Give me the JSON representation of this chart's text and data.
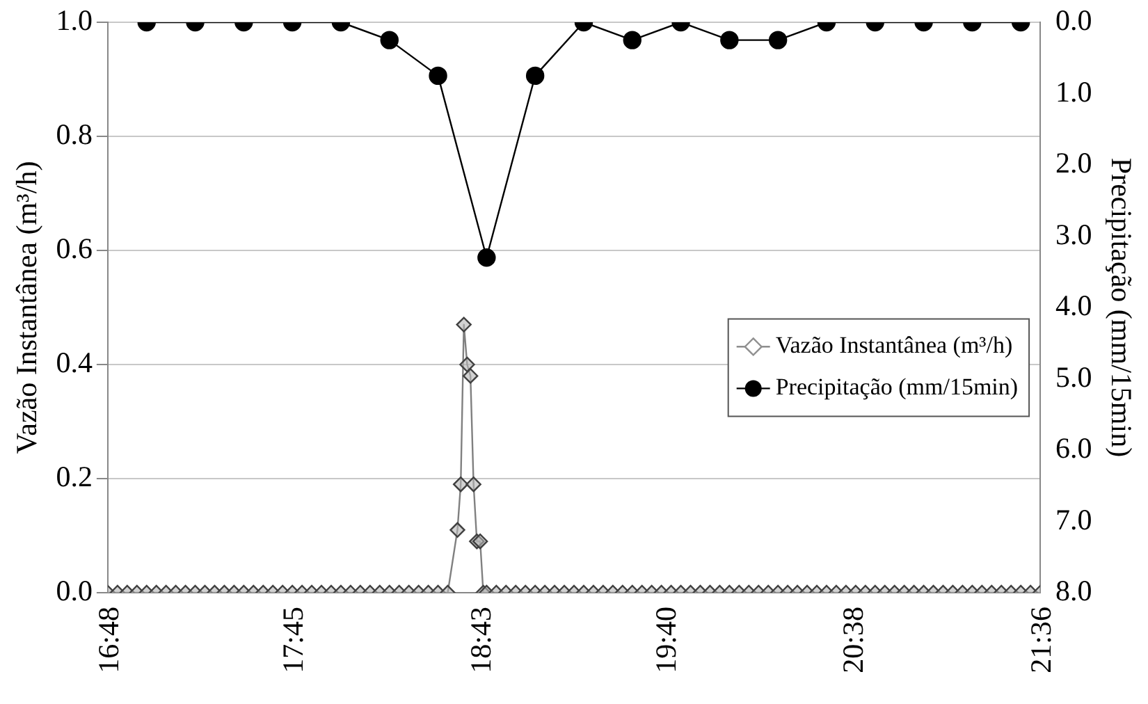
{
  "chart_data": {
    "type": "line",
    "ylabel": "Vazão Instantânea (m³/h)",
    "y2label": "Precipitação (mm/15min)",
    "xlim": [
      16.8,
      21.6
    ],
    "xticks": [
      {
        "value": 16.8,
        "label": "16:48"
      },
      {
        "value": 17.75,
        "label": "17:45"
      },
      {
        "value": 18.717,
        "label": "18:43"
      },
      {
        "value": 19.667,
        "label": "19:40"
      },
      {
        "value": 20.633,
        "label": "20:38"
      },
      {
        "value": 21.6,
        "label": "21:36"
      }
    ],
    "ylim": [
      0,
      1
    ],
    "yticks": [
      {
        "value": 0,
        "label": "0.0"
      },
      {
        "value": 0.2,
        "label": "0.2"
      },
      {
        "value": 0.4,
        "label": "0.4"
      },
      {
        "value": 0.6,
        "label": "0.6"
      },
      {
        "value": 0.8,
        "label": "0.8"
      },
      {
        "value": 1,
        "label": "1.0"
      }
    ],
    "y2lim": [
      8,
      0
    ],
    "y2ticks": [
      {
        "value": 0,
        "label": "0.0"
      },
      {
        "value": 1,
        "label": "1.0"
      },
      {
        "value": 2,
        "label": "2.0"
      },
      {
        "value": 3,
        "label": "3.0"
      },
      {
        "value": 4,
        "label": "4.0"
      },
      {
        "value": 5,
        "label": "5.0"
      },
      {
        "value": 6,
        "label": "6.0"
      },
      {
        "value": 7,
        "label": "7.0"
      },
      {
        "value": 8,
        "label": "8.0"
      }
    ],
    "grid": "y",
    "legend": "right",
    "series": [
      {
        "name": "Vazão Instantânea (m³/h)",
        "color": "#808080",
        "marker": "diamond",
        "line_style": "solid",
        "x": [
          16.8,
          16.85,
          16.9,
          16.95,
          17.0,
          17.05,
          17.1,
          17.15,
          17.2,
          17.25,
          17.3,
          17.35,
          17.4,
          17.45,
          17.5,
          17.55,
          17.6,
          17.65,
          17.7,
          17.75,
          17.8,
          17.85,
          17.9,
          17.95,
          18.0,
          18.05,
          18.1,
          18.15,
          18.2,
          18.25,
          18.3,
          18.35,
          18.4,
          18.45,
          18.5,
          18.55,
          18.6,
          18.617,
          18.633,
          18.65,
          18.667,
          18.683,
          18.7,
          18.717,
          18.733,
          18.75,
          18.8,
          18.85,
          18.9,
          18.95,
          19.0,
          19.05,
          19.1,
          19.15,
          19.2,
          19.25,
          19.3,
          19.35,
          19.4,
          19.45,
          19.5,
          19.55,
          19.6,
          19.65,
          19.7,
          19.75,
          19.8,
          19.85,
          19.9,
          19.95,
          20.0,
          20.05,
          20.1,
          20.15,
          20.2,
          20.25,
          20.3,
          20.35,
          20.4,
          20.45,
          20.5,
          20.55,
          20.6,
          20.65,
          20.7,
          20.75,
          20.8,
          20.85,
          20.9,
          20.95,
          21.0,
          21.05,
          21.1,
          21.15,
          21.2,
          21.25,
          21.3,
          21.35,
          21.4,
          21.45,
          21.5,
          21.55,
          21.6
        ],
        "values": [
          0,
          0,
          0,
          0,
          0,
          0,
          0,
          0,
          0,
          0,
          0,
          0,
          0,
          0,
          0,
          0,
          0,
          0,
          0,
          0,
          0,
          0,
          0,
          0,
          0,
          0,
          0,
          0,
          0,
          0,
          0,
          0,
          0,
          0,
          0,
          0,
          0.11,
          0.19,
          0.47,
          0.4,
          0.38,
          0.19,
          0.09,
          0.09,
          0,
          0,
          0,
          0,
          0,
          0,
          0,
          0,
          0,
          0,
          0,
          0,
          0,
          0,
          0,
          0,
          0,
          0,
          0,
          0,
          0,
          0,
          0,
          0,
          0,
          0,
          0,
          0,
          0,
          0,
          0,
          0,
          0,
          0,
          0,
          0,
          0,
          0,
          0,
          0,
          0,
          0,
          0,
          0,
          0,
          0,
          0,
          0,
          0,
          0,
          0,
          0,
          0,
          0,
          0,
          0,
          0,
          0,
          0
        ]
      },
      {
        "name": "Precipitação (mm/15min)",
        "color": "#000000",
        "marker": "circle",
        "line_style": "solid",
        "axis": "y2",
        "x": [
          17.0,
          17.25,
          17.5,
          17.75,
          18.0,
          18.25,
          18.5,
          18.75,
          19.0,
          19.25,
          19.5,
          19.75,
          20.0,
          20.25,
          20.5,
          20.75,
          21.0,
          21.25,
          21.5
        ],
        "values": [
          0,
          0,
          0,
          0,
          0,
          0.25,
          0.75,
          3.3,
          0.75,
          0,
          0.25,
          0,
          0.25,
          0.25,
          0,
          0,
          0,
          0,
          0
        ]
      }
    ]
  }
}
